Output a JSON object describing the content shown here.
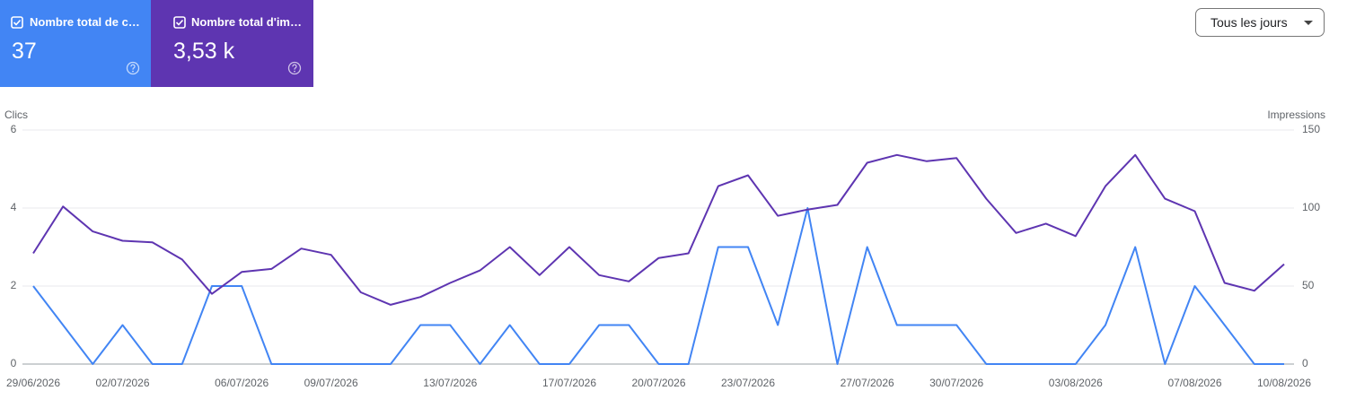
{
  "cards": [
    {
      "label": "Nombre total de c…",
      "value": "37"
    },
    {
      "label": "Nombre total d'im…",
      "value": "3,53 k"
    }
  ],
  "dropdown": "Tous les jours",
  "chart_data": {
    "type": "line",
    "y_label": "Clics",
    "y2_label": "Impressions",
    "categories": [
      "29/06/2026",
      null,
      null,
      "02/07/2026",
      null,
      null,
      null,
      "06/07/2026",
      null,
      null,
      "09/07/2026",
      null,
      null,
      null,
      "13/07/2026",
      null,
      null,
      null,
      "17/07/2026",
      null,
      null,
      "20/07/2026",
      null,
      null,
      "23/07/2026",
      null,
      null,
      null,
      "27/07/2026",
      null,
      null,
      "30/07/2026",
      null,
      null,
      null,
      "03/08/2026",
      null,
      null,
      null,
      "07/08/2026",
      null,
      null,
      "10/08/2026"
    ],
    "series": [
      {
        "name": "Clics",
        "color": "#4285f4",
        "values": [
          2,
          1,
          0,
          1,
          0,
          0,
          2,
          2,
          0,
          0,
          0,
          0,
          0,
          1,
          1,
          0,
          1,
          0,
          0,
          1,
          1,
          0,
          0,
          3,
          3,
          1,
          4,
          0,
          3,
          1,
          1,
          1,
          0,
          0,
          0,
          0,
          1,
          3,
          0,
          2,
          1,
          0,
          0
        ]
      },
      {
        "name": "Impressions",
        "color": "#5e35b1",
        "axis": "y2",
        "values": [
          71,
          101,
          85,
          79,
          78,
          67,
          45,
          59,
          61,
          74,
          70,
          46,
          38,
          43,
          52,
          60,
          75,
          57,
          75,
          57,
          53,
          68,
          71,
          114,
          121,
          95,
          99,
          102,
          129,
          134,
          130,
          132,
          106,
          84,
          90,
          82,
          114,
          134,
          106,
          98,
          52,
          47,
          64
        ]
      }
    ],
    "ylim": [
      0,
      6
    ],
    "yticks": [
      0,
      2,
      4,
      6
    ],
    "y2lim": [
      0,
      150
    ],
    "y2ticks": [
      0,
      50,
      100,
      150
    ],
    "grid": true
  }
}
